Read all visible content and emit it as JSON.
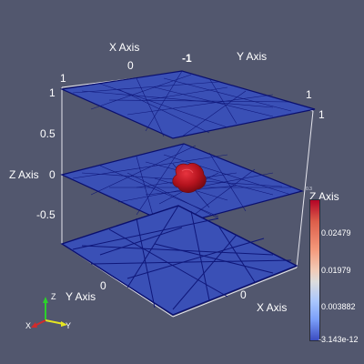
{
  "axes": {
    "x_title": "X Axis",
    "y_title": "Y Axis",
    "z_title": "Z Axis",
    "top_x_ticks": [
      "0",
      "-1"
    ],
    "top_y_tick": "1",
    "z_ticks": [
      "1",
      "0.5",
      "0",
      "-0.5"
    ],
    "right_z_tick": "1",
    "bottom_y_tick": "0",
    "bottom_x_tick": "0",
    "right_bottom_tick": "0",
    "mid_right_tick": "1"
  },
  "colorbar": {
    "title": "Z Axis",
    "top_label": "0.3",
    "ticks": [
      "0.02479",
      "0.01979",
      "0.003882",
      "-3.143e-12"
    ],
    "colors": [
      "#b40426",
      "#f4987a",
      "#dddcdc",
      "#7b9ff9",
      "#3b4cc0"
    ]
  },
  "orientation": {
    "x": "X",
    "y": "Y",
    "z": "Z"
  },
  "colors": {
    "background": "#52576e",
    "plane_fill": "#3b52b8",
    "mesh": "#0a0f6e",
    "blob": "#b5131e"
  }
}
